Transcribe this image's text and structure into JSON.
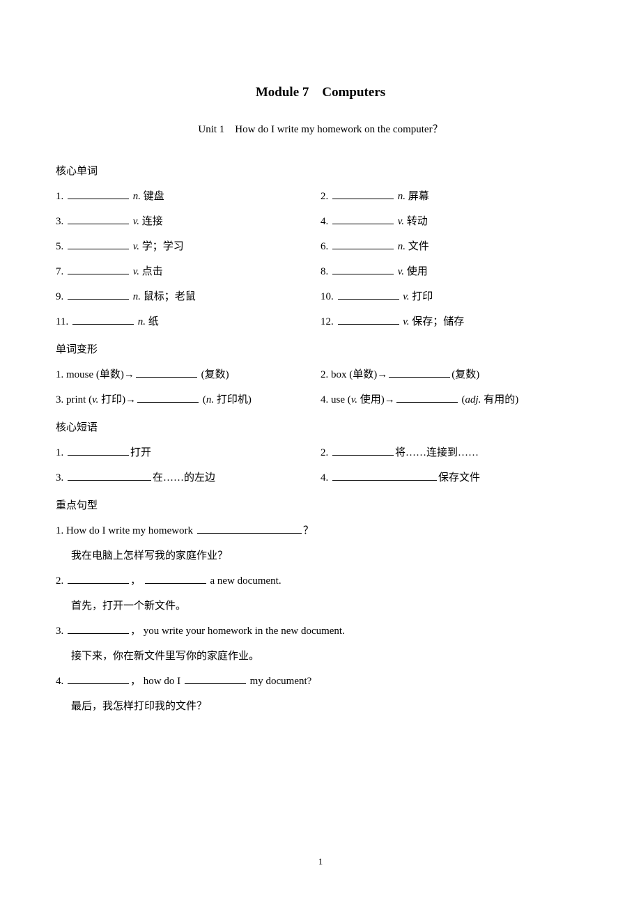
{
  "title": "Module 7　Computers",
  "subtitle": "Unit 1　How do I write my homework on the computer？",
  "sections": {
    "core_words": {
      "header": "核心单词",
      "items": [
        {
          "num": "1.",
          "pos": "n.",
          "def": "键盘"
        },
        {
          "num": "2.",
          "pos": "n.",
          "def": "屏幕"
        },
        {
          "num": "3.",
          "pos": "v.",
          "def": "连接"
        },
        {
          "num": "4.",
          "pos": "v.",
          "def": "转动"
        },
        {
          "num": "5.",
          "pos": "v.",
          "def": "学；学习"
        },
        {
          "num": "6.",
          "pos": "n.",
          "def": "文件"
        },
        {
          "num": "7.",
          "pos": "v.",
          "def": "点击"
        },
        {
          "num": "8.",
          "pos": "v.",
          "def": "使用"
        },
        {
          "num": "9.",
          "pos": "n.",
          "def": "鼠标；老鼠"
        },
        {
          "num": "10.",
          "pos": "v.",
          "def": "打印"
        },
        {
          "num": "11.",
          "pos": "n.",
          "def": "纸"
        },
        {
          "num": "12.",
          "pos": "v.",
          "def": "保存；储存"
        }
      ]
    },
    "word_forms": {
      "header": "单词变形",
      "items": [
        {
          "num": "1.",
          "prefix_word": "mouse",
          "prefix_paren": "(单数)→",
          "suffix": " (复数)"
        },
        {
          "num": "2.",
          "prefix_word": "box",
          "prefix_paren": " (单数)→",
          "suffix": "(复数)"
        },
        {
          "num": "3.",
          "prefix_word": "print",
          "prefix_paren": " (",
          "prefix_pos": "v.",
          "prefix_rest": " 打印)→",
          "suffix_paren": " (",
          "suffix_pos": "n.",
          "suffix_rest": " 打印机)"
        },
        {
          "num": "4.",
          "prefix_word": "use",
          "prefix_paren": " (",
          "prefix_pos": "v.",
          "prefix_rest": " 使用)→",
          "suffix_paren": " (",
          "suffix_pos": "adj.",
          "suffix_rest": " 有用的)"
        }
      ]
    },
    "core_phrases": {
      "header": "核心短语",
      "items": [
        {
          "num": "1.",
          "def": "打开"
        },
        {
          "num": "2.",
          "def": "将……连接到……"
        },
        {
          "num": "3.",
          "def": "在……的左边"
        },
        {
          "num": "4.",
          "def": "保存文件"
        }
      ]
    },
    "key_sentences": {
      "header": "重点句型",
      "s1": {
        "num": "1.",
        "pre": "How do I write my homework ",
        "post": "？",
        "trans": "我在电脑上怎样写我的家庭作业？"
      },
      "s2": {
        "num": "2.",
        "mid": "，",
        "post": " a new document.",
        "trans": "首先，打开一个新文件。"
      },
      "s3": {
        "num": "3.",
        "post": "， you write your homework in the new document.",
        "trans": "接下来，你在新文件里写你的家庭作业。"
      },
      "s4": {
        "num": "4.",
        "mid1": "， how do I ",
        "post": " my document?",
        "trans": "最后，我怎样打印我的文件？"
      }
    }
  },
  "page_number": "1",
  "colors": {
    "text": "#000000",
    "bg": "#ffffff"
  }
}
